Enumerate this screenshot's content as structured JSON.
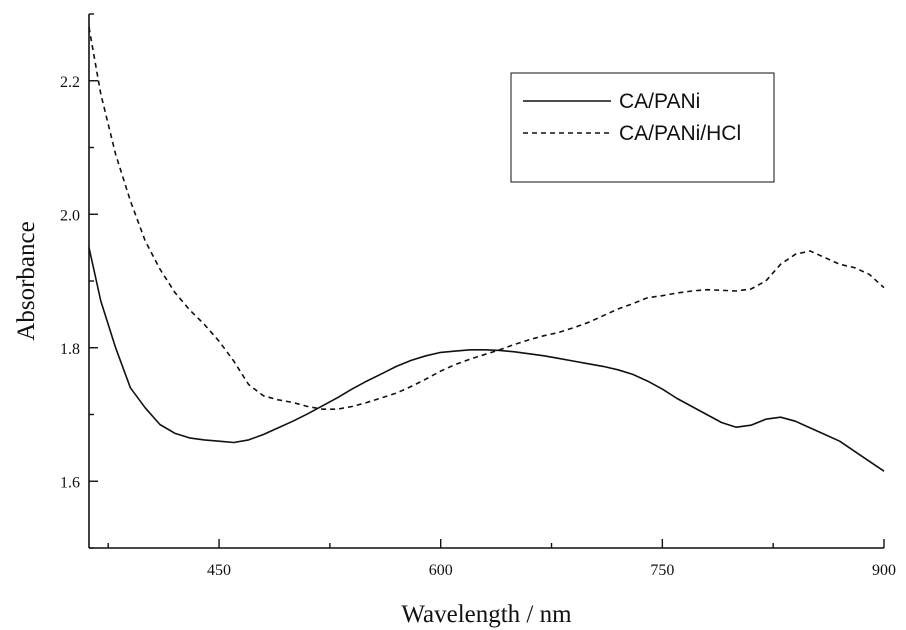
{
  "chart_data": {
    "type": "line",
    "title": "",
    "xlabel": "Wavelength / nm",
    "ylabel": "Absorbance",
    "xlim": [
      362,
      900
    ],
    "ylim": [
      1.5,
      2.3
    ],
    "x_ticks": [
      450,
      600,
      750,
      900
    ],
    "y_ticks": [
      1.6,
      1.8,
      2.0,
      2.2
    ],
    "grid": false,
    "legend_position": "top-right",
    "series": [
      {
        "name": "CA/PANi",
        "line_style": "solid",
        "color": "#111111",
        "x": [
          362,
          370,
          380,
          390,
          400,
          410,
          420,
          430,
          440,
          450,
          460,
          470,
          480,
          490,
          500,
          510,
          520,
          530,
          540,
          550,
          560,
          570,
          580,
          590,
          600,
          610,
          620,
          630,
          640,
          650,
          660,
          670,
          680,
          690,
          700,
          710,
          720,
          730,
          740,
          750,
          760,
          770,
          780,
          790,
          800,
          810,
          820,
          830,
          840,
          850,
          860,
          870,
          880,
          890,
          900
        ],
        "y": [
          1.95,
          1.87,
          1.8,
          1.74,
          1.71,
          1.685,
          1.672,
          1.665,
          1.662,
          1.66,
          1.658,
          1.662,
          1.67,
          1.68,
          1.69,
          1.701,
          1.713,
          1.725,
          1.738,
          1.75,
          1.761,
          1.772,
          1.781,
          1.788,
          1.793,
          1.795,
          1.797,
          1.797,
          1.796,
          1.794,
          1.791,
          1.788,
          1.784,
          1.78,
          1.776,
          1.772,
          1.767,
          1.76,
          1.75,
          1.738,
          1.724,
          1.712,
          1.7,
          1.688,
          1.681,
          1.684,
          1.693,
          1.696,
          1.69,
          1.68,
          1.67,
          1.66,
          1.645,
          1.63,
          1.615
        ]
      },
      {
        "name": "CA/PANi/HCl",
        "line_style": "dashed",
        "color": "#111111",
        "x": [
          362,
          370,
          380,
          390,
          400,
          410,
          420,
          430,
          440,
          450,
          460,
          470,
          480,
          490,
          500,
          510,
          520,
          530,
          540,
          550,
          560,
          570,
          580,
          590,
          600,
          610,
          620,
          630,
          640,
          650,
          660,
          670,
          680,
          690,
          700,
          710,
          720,
          730,
          740,
          750,
          760,
          770,
          780,
          790,
          800,
          810,
          820,
          830,
          840,
          850,
          860,
          870,
          880,
          890,
          900
        ],
        "y": [
          2.28,
          2.18,
          2.09,
          2.02,
          1.96,
          1.918,
          1.883,
          1.857,
          1.835,
          1.81,
          1.78,
          1.745,
          1.728,
          1.722,
          1.718,
          1.712,
          1.708,
          1.708,
          1.712,
          1.718,
          1.725,
          1.732,
          1.742,
          1.753,
          1.765,
          1.775,
          1.783,
          1.79,
          1.797,
          1.805,
          1.812,
          1.818,
          1.823,
          1.83,
          1.838,
          1.848,
          1.858,
          1.866,
          1.875,
          1.878,
          1.882,
          1.885,
          1.887,
          1.886,
          1.885,
          1.888,
          1.9,
          1.925,
          1.94,
          1.945,
          1.935,
          1.925,
          1.92,
          1.91,
          1.89
        ]
      }
    ]
  }
}
